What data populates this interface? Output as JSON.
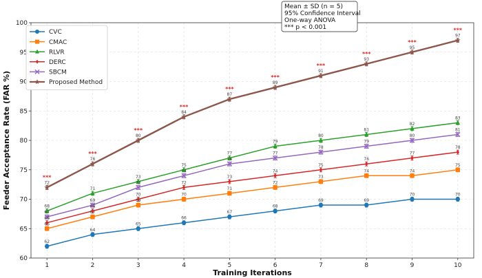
{
  "chart_data": {
    "type": "line",
    "xlabel": "Training Iterations",
    "ylabel": "Feeder Acceptance Rate (FAR %)",
    "x": [
      1,
      2,
      3,
      4,
      5,
      6,
      7,
      8,
      9,
      10
    ],
    "xlim": [
      0.65,
      10.35
    ],
    "ylim": [
      60,
      100
    ],
    "yticks": [
      60,
      65,
      70,
      75,
      80,
      85,
      90,
      95,
      100
    ],
    "grid": true,
    "legend_position": "top-left",
    "series": [
      {
        "name": "CVC",
        "color": "#1f77b4",
        "marker": "circle",
        "values": [
          62,
          64,
          65,
          66,
          67,
          68,
          69,
          69,
          70,
          70
        ]
      },
      {
        "name": "CMAC",
        "color": "#ff7f0e",
        "marker": "square",
        "values": [
          65,
          67,
          69,
          70,
          71,
          72,
          73,
          74,
          74,
          75
        ]
      },
      {
        "name": "RLVR",
        "color": "#2ca02c",
        "marker": "triangle-up",
        "values": [
          68,
          71,
          73,
          75,
          77,
          79,
          80,
          81,
          82,
          83
        ]
      },
      {
        "name": "DERC",
        "color": "#d62728",
        "marker": "diamond",
        "values": [
          66,
          68,
          70,
          72,
          73,
          74,
          75,
          76,
          77,
          78
        ]
      },
      {
        "name": "SBCM",
        "color": "#9467bd",
        "marker": "x",
        "values": [
          67,
          69,
          72,
          74,
          76,
          77,
          78,
          79,
          80,
          81
        ]
      },
      {
        "name": "Proposed Method",
        "color": "#8c564b",
        "marker": "star",
        "values": [
          72,
          76,
          80,
          84,
          87,
          89,
          91,
          93,
          95,
          97
        ]
      }
    ],
    "significance_label": "***",
    "annotation_lines": [
      "Mean ± SD (n = 5)",
      "95% Confidence Interval",
      "One-way ANOVA",
      "*** p < 0.001"
    ]
  }
}
